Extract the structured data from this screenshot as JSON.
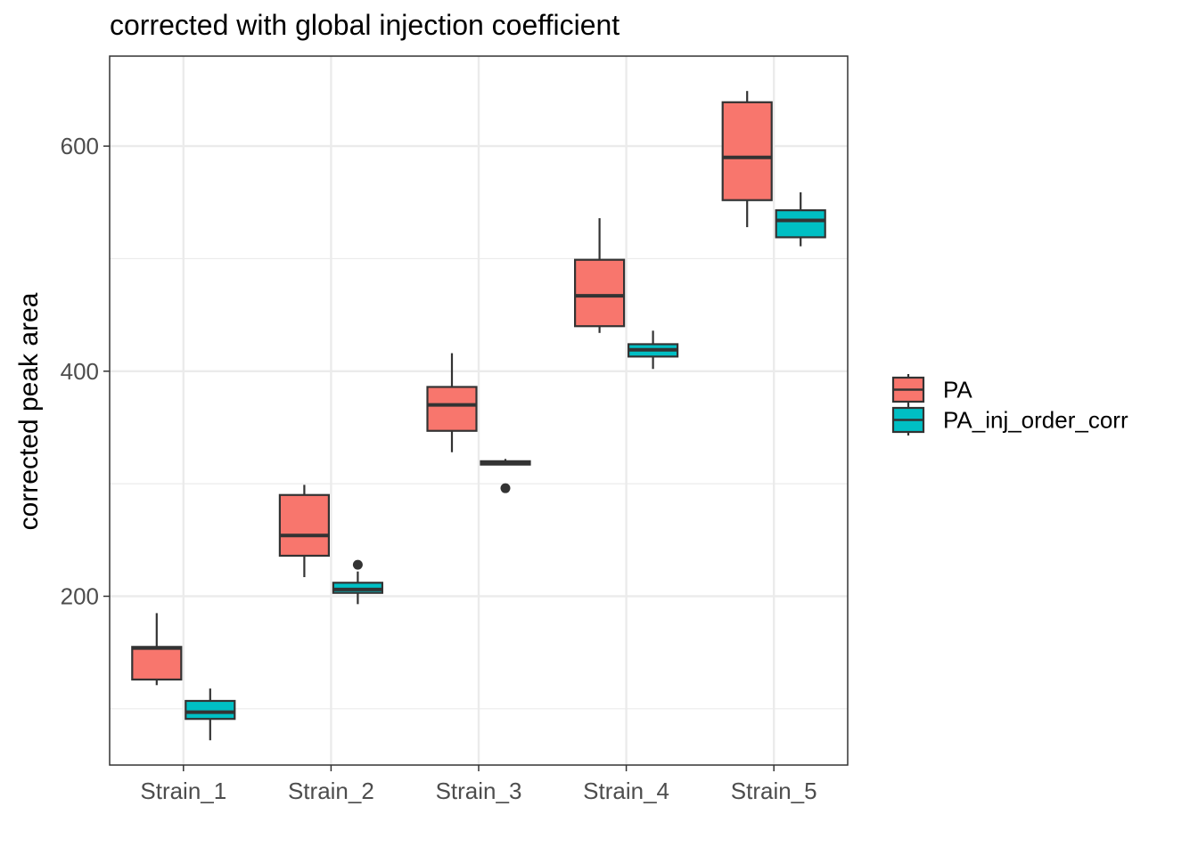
{
  "chart_data": {
    "type": "boxplot",
    "title": "corrected with global injection coefficient",
    "xlabel": "",
    "ylabel": "corrected peak area",
    "ylim": [
      50,
      680
    ],
    "yticks_major": [
      200,
      400,
      600
    ],
    "yticks_minor": [
      100,
      300,
      500
    ],
    "grid": true,
    "legend_position": "right",
    "categories": [
      "Strain_1",
      "Strain_2",
      "Strain_3",
      "Strain_4",
      "Strain_5"
    ],
    "series": [
      {
        "name": "PA",
        "color": "#F8766D",
        "boxes": [
          {
            "whisker_low": 121,
            "q1": 126,
            "median": 154,
            "q3": 155,
            "whisker_high": 185,
            "outliers": []
          },
          {
            "whisker_low": 217,
            "q1": 236,
            "median": 254,
            "q3": 290,
            "whisker_high": 299,
            "outliers": []
          },
          {
            "whisker_low": 328,
            "q1": 347,
            "median": 370,
            "q3": 386,
            "whisker_high": 416,
            "outliers": []
          },
          {
            "whisker_low": 434,
            "q1": 440,
            "median": 467,
            "q3": 499,
            "whisker_high": 536,
            "outliers": []
          },
          {
            "whisker_low": 528,
            "q1": 552,
            "median": 590,
            "q3": 639,
            "whisker_high": 649,
            "outliers": []
          }
        ]
      },
      {
        "name": "PA_inj_order_corr",
        "color": "#00BFC4",
        "boxes": [
          {
            "whisker_low": 72,
            "q1": 91,
            "median": 97,
            "q3": 107,
            "whisker_high": 118,
            "outliers": []
          },
          {
            "whisker_low": 193,
            "q1": 203,
            "median": 206,
            "q3": 212,
            "whisker_high": 222,
            "outliers": [
              228
            ]
          },
          {
            "whisker_low": 317,
            "q1": 317,
            "median": 319,
            "q3": 320,
            "whisker_high": 322,
            "outliers": [
              296
            ]
          },
          {
            "whisker_low": 402,
            "q1": 413,
            "median": 419,
            "q3": 424,
            "whisker_high": 436,
            "outliers": []
          },
          {
            "whisker_low": 511,
            "q1": 519,
            "median": 534,
            "q3": 543,
            "whisker_high": 559,
            "outliers": []
          }
        ]
      }
    ]
  }
}
